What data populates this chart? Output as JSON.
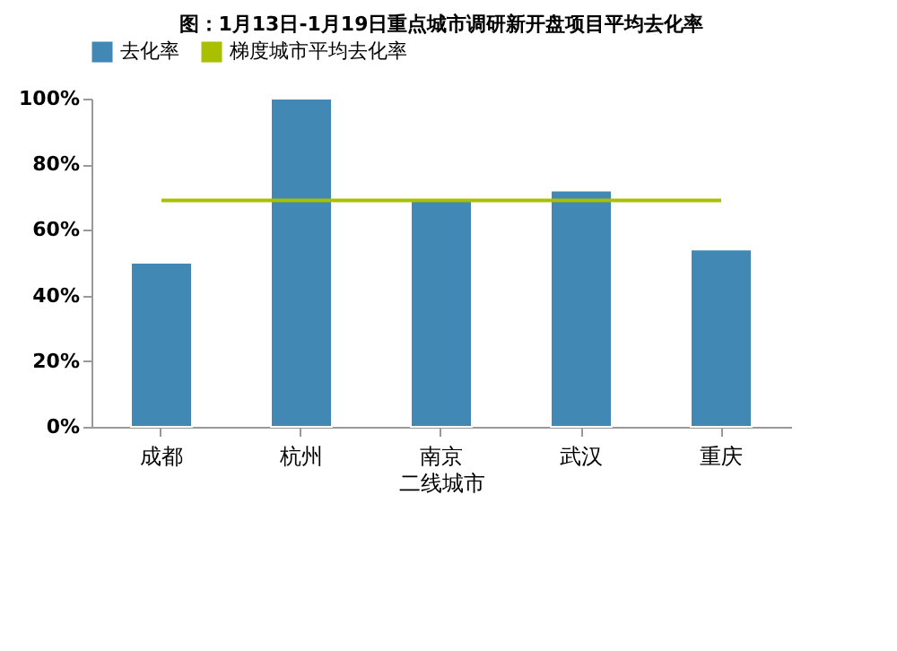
{
  "chart_data": {
    "type": "bar",
    "title": "图：1月13日-1月19日重点城市调研新开盘项目平均去化率",
    "xlabel": "二线城市",
    "categories": [
      "成都",
      "杭州",
      "南京",
      "武汉",
      "重庆"
    ],
    "series": [
      {
        "name": "去化率",
        "color": "#4189b4",
        "values": [
          50,
          100,
          69,
          72,
          54
        ]
      },
      {
        "name": "梯度城市平均去化率",
        "type": "line",
        "color": "#a8c000",
        "values": [
          69,
          69,
          69,
          69,
          69
        ]
      }
    ],
    "ylim": [
      0,
      100
    ],
    "yticks": [
      {
        "value": 0,
        "label": "0%"
      },
      {
        "value": 20,
        "label": "20%"
      },
      {
        "value": 40,
        "label": "40%"
      },
      {
        "value": 60,
        "label": "60%"
      },
      {
        "value": 80,
        "label": "80%"
      },
      {
        "value": 100,
        "label": "100%"
      }
    ],
    "grid": false,
    "legend": "top"
  }
}
